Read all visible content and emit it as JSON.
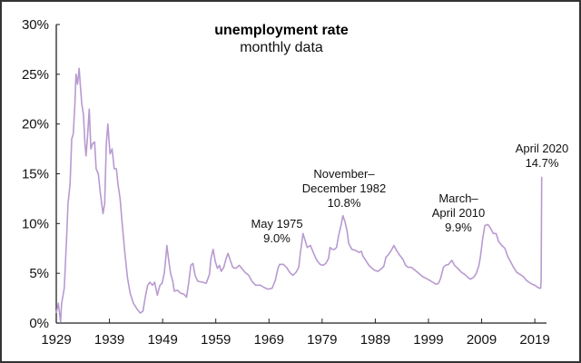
{
  "chart_data": {
    "type": "line",
    "title": "unemployment rate",
    "subtitle": "monthly data",
    "xlabel": "",
    "ylabel": "",
    "xlim": [
      1929,
      2021.2
    ],
    "ylim": [
      0,
      30
    ],
    "x_ticks": [
      "1929",
      "1939",
      "1949",
      "1959",
      "1969",
      "1979",
      "1989",
      "1999",
      "2009",
      "2019"
    ],
    "y_ticks": [
      "0%",
      "5%",
      "10%",
      "15%",
      "20%",
      "25%",
      "30%"
    ],
    "grid": false,
    "line_color": "#b89ad0",
    "series": [
      {
        "points": [
          [
            1929.0,
            1.0
          ],
          [
            1929.4,
            2.0
          ],
          [
            1929.8,
            0.1
          ],
          [
            1930.0,
            2.0
          ],
          [
            1930.5,
            3.5
          ],
          [
            1930.9,
            8.0
          ],
          [
            1931.2,
            12.0
          ],
          [
            1931.6,
            14.0
          ],
          [
            1931.9,
            18.5
          ],
          [
            1932.2,
            19.0
          ],
          [
            1932.5,
            22.0
          ],
          [
            1932.7,
            25.0
          ],
          [
            1933.0,
            24.0
          ],
          [
            1933.3,
            25.6
          ],
          [
            1933.5,
            24.0
          ],
          [
            1933.8,
            22.0
          ],
          [
            1934.1,
            21.0
          ],
          [
            1934.4,
            18.0
          ],
          [
            1934.6,
            16.8
          ],
          [
            1934.9,
            19.0
          ],
          [
            1935.2,
            21.5
          ],
          [
            1935.5,
            17.5
          ],
          [
            1935.8,
            18.0
          ],
          [
            1936.2,
            18.2
          ],
          [
            1936.5,
            15.5
          ],
          [
            1936.9,
            15.0
          ],
          [
            1937.3,
            13.0
          ],
          [
            1937.8,
            11.0
          ],
          [
            1938.1,
            12.0
          ],
          [
            1938.4,
            18.0
          ],
          [
            1938.7,
            20.0
          ],
          [
            1939.1,
            17.0
          ],
          [
            1939.5,
            17.5
          ],
          [
            1939.9,
            15.5
          ],
          [
            1940.3,
            15.5
          ],
          [
            1940.6,
            14.0
          ],
          [
            1941.0,
            12.5
          ],
          [
            1941.4,
            10.0
          ],
          [
            1941.9,
            7.0
          ],
          [
            1942.4,
            4.5
          ],
          [
            1942.9,
            3.0
          ],
          [
            1943.5,
            2.0
          ],
          [
            1944.2,
            1.4
          ],
          [
            1944.8,
            1.0
          ],
          [
            1945.3,
            1.2
          ],
          [
            1945.8,
            2.8
          ],
          [
            1946.2,
            3.8
          ],
          [
            1946.6,
            4.1
          ],
          [
            1947.1,
            3.8
          ],
          [
            1947.5,
            4.1
          ],
          [
            1948.0,
            2.8
          ],
          [
            1948.5,
            3.8
          ],
          [
            1948.9,
            4.0
          ],
          [
            1949.3,
            5.0
          ],
          [
            1949.6,
            6.6
          ],
          [
            1949.8,
            7.8
          ],
          [
            1950.1,
            6.5
          ],
          [
            1950.5,
            5.0
          ],
          [
            1950.9,
            4.2
          ],
          [
            1951.2,
            3.2
          ],
          [
            1951.8,
            3.3
          ],
          [
            1952.4,
            3.0
          ],
          [
            1953.0,
            2.9
          ],
          [
            1953.5,
            2.6
          ],
          [
            1953.9,
            4.0
          ],
          [
            1954.3,
            5.8
          ],
          [
            1954.7,
            6.0
          ],
          [
            1955.1,
            4.8
          ],
          [
            1955.6,
            4.2
          ],
          [
            1956.5,
            4.1
          ],
          [
            1957.2,
            4.0
          ],
          [
            1957.8,
            4.9
          ],
          [
            1958.1,
            6.5
          ],
          [
            1958.5,
            7.4
          ],
          [
            1958.9,
            6.2
          ],
          [
            1959.3,
            5.5
          ],
          [
            1959.7,
            5.8
          ],
          [
            1960.0,
            5.2
          ],
          [
            1960.5,
            5.6
          ],
          [
            1960.9,
            6.4
          ],
          [
            1961.3,
            7.0
          ],
          [
            1961.8,
            6.2
          ],
          [
            1962.2,
            5.6
          ],
          [
            1962.8,
            5.5
          ],
          [
            1963.4,
            5.8
          ],
          [
            1963.9,
            5.5
          ],
          [
            1964.5,
            5.1
          ],
          [
            1965.2,
            4.8
          ],
          [
            1965.8,
            4.2
          ],
          [
            1966.5,
            3.8
          ],
          [
            1967.4,
            3.8
          ],
          [
            1968.0,
            3.6
          ],
          [
            1968.8,
            3.4
          ],
          [
            1969.6,
            3.5
          ],
          [
            1970.2,
            4.3
          ],
          [
            1970.7,
            5.5
          ],
          [
            1971.0,
            5.9
          ],
          [
            1971.7,
            5.9
          ],
          [
            1972.3,
            5.6
          ],
          [
            1972.9,
            5.1
          ],
          [
            1973.5,
            4.8
          ],
          [
            1974.1,
            5.1
          ],
          [
            1974.6,
            5.6
          ],
          [
            1974.9,
            7.0
          ],
          [
            1975.4,
            9.0
          ],
          [
            1975.8,
            8.3
          ],
          [
            1976.2,
            7.6
          ],
          [
            1976.8,
            7.8
          ],
          [
            1977.4,
            7.0
          ],
          [
            1978.0,
            6.3
          ],
          [
            1978.6,
            5.9
          ],
          [
            1979.2,
            5.8
          ],
          [
            1979.7,
            6.0
          ],
          [
            1980.2,
            6.5
          ],
          [
            1980.5,
            7.6
          ],
          [
            1980.9,
            7.4
          ],
          [
            1981.3,
            7.4
          ],
          [
            1981.7,
            7.6
          ],
          [
            1982.1,
            8.8
          ],
          [
            1982.6,
            9.9
          ],
          [
            1982.9,
            10.8
          ],
          [
            1983.3,
            10.2
          ],
          [
            1983.7,
            9.2
          ],
          [
            1984.0,
            8.0
          ],
          [
            1984.6,
            7.4
          ],
          [
            1985.3,
            7.3
          ],
          [
            1985.9,
            7.1
          ],
          [
            1986.4,
            7.2
          ],
          [
            1986.6,
            6.8
          ],
          [
            1987.2,
            6.3
          ],
          [
            1987.8,
            5.8
          ],
          [
            1988.4,
            5.5
          ],
          [
            1988.9,
            5.3
          ],
          [
            1989.5,
            5.2
          ],
          [
            1990.0,
            5.4
          ],
          [
            1990.6,
            5.7
          ],
          [
            1991.0,
            6.6
          ],
          [
            1991.5,
            6.9
          ],
          [
            1992.0,
            7.3
          ],
          [
            1992.5,
            7.8
          ],
          [
            1993.0,
            7.3
          ],
          [
            1993.6,
            6.8
          ],
          [
            1994.2,
            6.4
          ],
          [
            1994.7,
            5.8
          ],
          [
            1995.2,
            5.6
          ],
          [
            1995.8,
            5.6
          ],
          [
            1996.5,
            5.3
          ],
          [
            1997.2,
            5.0
          ],
          [
            1997.8,
            4.7
          ],
          [
            1998.5,
            4.5
          ],
          [
            1999.2,
            4.3
          ],
          [
            1999.8,
            4.1
          ],
          [
            2000.4,
            3.9
          ],
          [
            2000.9,
            4.0
          ],
          [
            2001.3,
            4.5
          ],
          [
            2001.8,
            5.6
          ],
          [
            2002.2,
            5.8
          ],
          [
            2002.8,
            5.9
          ],
          [
            2003.4,
            6.3
          ],
          [
            2003.9,
            5.8
          ],
          [
            2004.5,
            5.5
          ],
          [
            2005.2,
            5.1
          ],
          [
            2005.8,
            4.9
          ],
          [
            2006.4,
            4.6
          ],
          [
            2006.9,
            4.4
          ],
          [
            2007.5,
            4.6
          ],
          [
            2008.0,
            5.0
          ],
          [
            2008.5,
            5.8
          ],
          [
            2008.8,
            6.8
          ],
          [
            2009.2,
            8.5
          ],
          [
            2009.6,
            9.8
          ],
          [
            2010.2,
            9.9
          ],
          [
            2010.7,
            9.5
          ],
          [
            2011.2,
            9.0
          ],
          [
            2011.7,
            9.0
          ],
          [
            2012.2,
            8.2
          ],
          [
            2012.8,
            7.8
          ],
          [
            2013.4,
            7.5
          ],
          [
            2013.9,
            6.7
          ],
          [
            2014.5,
            6.1
          ],
          [
            2015.0,
            5.6
          ],
          [
            2015.6,
            5.1
          ],
          [
            2016.2,
            4.9
          ],
          [
            2016.8,
            4.7
          ],
          [
            2017.4,
            4.3
          ],
          [
            2017.9,
            4.1
          ],
          [
            2018.5,
            3.9
          ],
          [
            2019.0,
            3.8
          ],
          [
            2019.5,
            3.6
          ],
          [
            2019.9,
            3.5
          ],
          [
            2020.1,
            3.5
          ],
          [
            2020.2,
            4.4
          ],
          [
            2020.3,
            14.7
          ]
        ]
      }
    ],
    "annotations": [
      {
        "lines": [
          "May 1975",
          "9.0%"
        ]
      },
      {
        "lines": [
          "November–",
          "December 1982",
          "10.8%"
        ]
      },
      {
        "lines": [
          "March–",
          "April 2010",
          "9.9%"
        ]
      },
      {
        "lines": [
          "April 2020",
          "14.7%"
        ]
      }
    ]
  }
}
